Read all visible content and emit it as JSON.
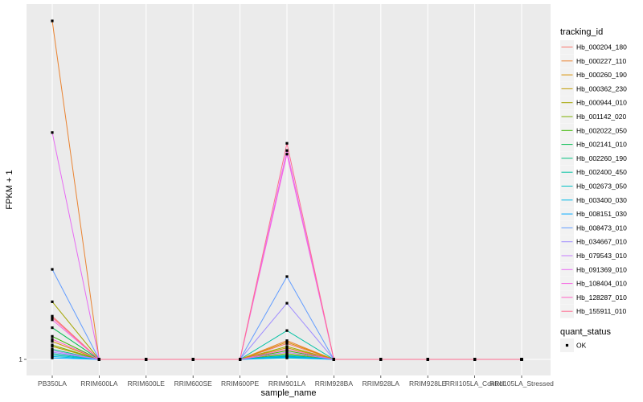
{
  "chart_data": {
    "type": "line",
    "title": "",
    "xlabel": "sample_name",
    "ylabel": "FPKM + 1",
    "y_tick_labels": [
      "1"
    ],
    "ylim": [
      1,
      48
    ],
    "grid": true,
    "legend_position": "right",
    "categories": [
      "PB350LA",
      "RRIM600LA",
      "RRIM600LE",
      "RRIM600SE",
      "RRIM600PE",
      "RRIM901LA",
      "RRIM928BA",
      "RRIM928LA",
      "RRIM928LE",
      "RRII105LA_Control",
      "RRII105LA_Stressed"
    ],
    "series": [
      {
        "name": "Hb_000204_180",
        "color": "#F8766D",
        "values": [
          7.0,
          1,
          1,
          1,
          1,
          3.2,
          1,
          1,
          1,
          1,
          1
        ]
      },
      {
        "name": "Hb_000227_110",
        "color": "#EA8331",
        "values": [
          48.0,
          1,
          1,
          1,
          1,
          3.6,
          1,
          1,
          1,
          1,
          1
        ]
      },
      {
        "name": "Hb_000260_190",
        "color": "#D89000",
        "values": [
          3.5,
          1,
          1,
          1,
          1,
          3.4,
          1,
          1,
          1,
          1,
          1
        ]
      },
      {
        "name": "Hb_000362_230",
        "color": "#C09B00",
        "values": [
          2.8,
          1,
          1,
          1,
          1,
          2.6,
          1,
          1,
          1,
          1,
          1
        ]
      },
      {
        "name": "Hb_000944_010",
        "color": "#A3A500",
        "values": [
          9.0,
          1,
          1,
          1,
          1,
          2.8,
          1,
          1,
          1,
          1,
          1
        ]
      },
      {
        "name": "Hb_001142_020",
        "color": "#7CAE00",
        "values": [
          3.0,
          1,
          1,
          1,
          1,
          1.8,
          1,
          1,
          1,
          1,
          1
        ]
      },
      {
        "name": "Hb_002022_050",
        "color": "#39B600",
        "values": [
          4.2,
          1,
          1,
          1,
          1,
          2.2,
          1,
          1,
          1,
          1,
          1
        ]
      },
      {
        "name": "Hb_002141_010",
        "color": "#00BB4E",
        "values": [
          5.4,
          1,
          1,
          1,
          1,
          1.6,
          1,
          1,
          1,
          1,
          1
        ]
      },
      {
        "name": "Hb_002260_190",
        "color": "#00BF7D",
        "values": [
          2.4,
          1,
          1,
          1,
          1,
          1.4,
          1,
          1,
          1,
          1,
          1
        ]
      },
      {
        "name": "Hb_002400_450",
        "color": "#00C1A3",
        "values": [
          1.8,
          1,
          1,
          1,
          1,
          5.0,
          1,
          1,
          1,
          1,
          1
        ]
      },
      {
        "name": "Hb_002673_050",
        "color": "#00BFC4",
        "values": [
          1.6,
          1,
          1,
          1,
          1,
          1.2,
          1,
          1,
          1,
          1,
          1
        ]
      },
      {
        "name": "Hb_003400_030",
        "color": "#00B8E7",
        "values": [
          1.4,
          1,
          1,
          1,
          1,
          1.5,
          1,
          1,
          1,
          1,
          1
        ]
      },
      {
        "name": "Hb_008151_030",
        "color": "#00A9FF",
        "values": [
          1.2,
          1,
          1,
          1,
          1,
          1.3,
          1,
          1,
          1,
          1,
          1
        ]
      },
      {
        "name": "Hb_008473_010",
        "color": "#619CFF",
        "values": [
          13.5,
          1,
          1,
          1,
          1,
          12.5,
          1,
          1,
          1,
          1,
          1
        ]
      },
      {
        "name": "Hb_034667_010",
        "color": "#9F8CFF",
        "values": [
          2.0,
          1,
          1,
          1,
          1,
          8.8,
          1,
          1,
          1,
          1,
          1
        ]
      },
      {
        "name": "Hb_079543_010",
        "color": "#C77CFF",
        "values": [
          2.2,
          1,
          1,
          1,
          1,
          2.0,
          1,
          1,
          1,
          1,
          1
        ]
      },
      {
        "name": "Hb_091369_010",
        "color": "#E76BF3",
        "values": [
          32.5,
          1,
          1,
          1,
          1,
          30.0,
          1,
          1,
          1,
          1,
          1
        ]
      },
      {
        "name": "Hb_108404_010",
        "color": "#F564E3",
        "values": [
          6.5,
          1,
          1,
          1,
          1,
          29.5,
          1,
          1,
          1,
          1,
          1
        ]
      },
      {
        "name": "Hb_128287_010",
        "color": "#FF61C3",
        "values": [
          3.8,
          1,
          1,
          1,
          1,
          2.4,
          1,
          1,
          1,
          1,
          1
        ]
      },
      {
        "name": "Hb_155911_010",
        "color": "#FF6C91",
        "values": [
          6.8,
          1,
          1,
          1,
          1,
          31.0,
          1,
          1,
          1,
          1,
          1
        ]
      }
    ],
    "legend_title": "tracking_id",
    "shape_legend": {
      "title": "quant_status",
      "items": [
        "OK"
      ]
    }
  }
}
